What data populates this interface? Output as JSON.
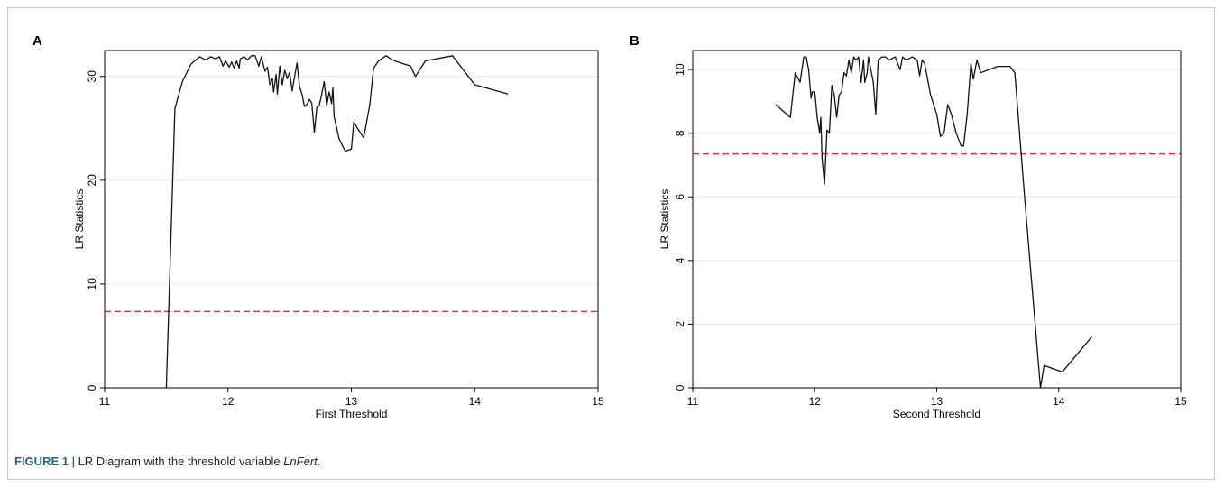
{
  "figure": {
    "label": "FIGURE 1",
    "separator": " | ",
    "caption_text": "LR Diagram with the threshold variable ",
    "caption_var": "LnFert",
    "caption_end": "."
  },
  "colors": {
    "line": "#111111",
    "critical": "#c8385a",
    "grid": "#e6e6e6",
    "figure_label": "#2b5f8a"
  },
  "chart_data": [
    {
      "panel": "A",
      "type": "line",
      "xlabel": "First Threshold",
      "ylabel": "LR Statistics",
      "xlim": [
        11,
        15
      ],
      "ylim": [
        0,
        32.5
      ],
      "xticks": [
        11,
        12,
        13,
        14,
        15
      ],
      "yticks": [
        0,
        10,
        20,
        30
      ],
      "grid": true,
      "critical_value": 7.35,
      "series": [
        {
          "x": [
            11.5,
            11.57,
            11.63,
            11.7,
            11.77,
            11.82,
            11.86,
            11.9,
            11.93,
            11.96,
            11.98,
            12.01,
            12.03,
            12.05,
            12.07,
            12.09,
            12.1,
            12.13,
            12.16,
            12.19,
            12.22,
            12.25,
            12.27,
            12.3,
            12.32,
            12.34,
            12.36,
            12.37,
            12.39,
            12.4,
            12.42,
            12.44,
            12.46,
            12.48,
            12.5,
            12.52,
            12.54,
            12.56,
            12.58,
            12.6,
            12.62,
            12.64,
            12.66,
            12.68,
            12.7,
            12.72,
            12.74,
            12.76,
            12.78,
            12.8,
            12.82,
            12.84,
            12.85,
            12.86,
            12.88,
            12.9,
            12.95,
            13.0,
            13.02,
            13.06,
            13.1,
            13.15,
            13.18,
            13.22,
            13.28,
            13.35,
            13.48,
            13.52,
            13.6,
            13.82,
            14.0,
            14.27
          ],
          "y": [
            0.0,
            26.9,
            29.5,
            31.2,
            31.9,
            31.6,
            31.9,
            31.7,
            31.9,
            31.0,
            31.5,
            30.9,
            31.4,
            30.8,
            31.5,
            30.8,
            31.7,
            31.9,
            31.6,
            32.0,
            32.0,
            31.0,
            31.9,
            30.5,
            30.9,
            29.2,
            29.8,
            28.5,
            30.2,
            28.3,
            31.0,
            29.2,
            30.6,
            29.8,
            30.4,
            28.6,
            30.0,
            31.3,
            29.0,
            28.3,
            27.1,
            27.3,
            27.8,
            27.4,
            24.6,
            27.0,
            27.2,
            28.3,
            29.5,
            27.2,
            28.5,
            27.4,
            28.9,
            26.1,
            25.1,
            24.0,
            22.8,
            23.0,
            25.6,
            24.8,
            24.1,
            27.3,
            30.8,
            31.5,
            32.0,
            31.5,
            31.0,
            30.0,
            31.5,
            32.0,
            29.2,
            28.3
          ]
        }
      ]
    },
    {
      "panel": "B",
      "type": "line",
      "xlabel": "Second Threshold",
      "ylabel": "LR Statistics",
      "xlim": [
        11,
        15
      ],
      "ylim": [
        0,
        10.6
      ],
      "xticks": [
        11,
        12,
        13,
        14,
        15
      ],
      "yticks": [
        0,
        2,
        4,
        6,
        8,
        10
      ],
      "grid": true,
      "critical_value": 7.35,
      "series": [
        {
          "x": [
            11.68,
            11.8,
            11.84,
            11.88,
            11.91,
            11.93,
            11.95,
            11.97,
            11.98,
            12.0,
            12.02,
            12.04,
            12.05,
            12.06,
            12.08,
            12.1,
            12.12,
            12.14,
            12.16,
            12.18,
            12.2,
            12.22,
            12.24,
            12.26,
            12.28,
            12.3,
            12.32,
            12.34,
            12.36,
            12.38,
            12.4,
            12.41,
            12.43,
            12.44,
            12.46,
            12.48,
            12.5,
            12.52,
            12.55,
            12.58,
            12.61,
            12.66,
            12.7,
            12.72,
            12.75,
            12.8,
            12.84,
            12.86,
            12.88,
            12.9,
            12.92,
            12.95,
            13.0,
            13.03,
            13.06,
            13.09,
            13.12,
            13.16,
            13.2,
            13.22,
            13.25,
            13.28,
            13.3,
            13.33,
            13.36,
            13.5,
            13.6,
            13.64,
            13.72,
            13.85,
            13.88,
            14.03,
            14.27
          ],
          "y": [
            8.9,
            8.5,
            9.9,
            9.6,
            10.4,
            10.4,
            10.0,
            9.1,
            9.3,
            9.3,
            8.5,
            8.0,
            8.5,
            7.2,
            6.4,
            8.1,
            8.0,
            9.5,
            9.2,
            8.5,
            9.2,
            9.3,
            9.9,
            9.8,
            10.3,
            9.9,
            10.4,
            10.3,
            10.4,
            9.6,
            10.3,
            9.6,
            9.9,
            10.4,
            10.0,
            9.6,
            8.6,
            10.3,
            10.4,
            10.4,
            10.3,
            10.4,
            10.0,
            10.4,
            10.3,
            10.4,
            10.3,
            9.8,
            10.3,
            10.2,
            9.8,
            9.2,
            8.6,
            7.9,
            8.0,
            8.9,
            8.6,
            8.0,
            7.6,
            7.6,
            8.6,
            10.2,
            9.7,
            10.3,
            9.9,
            10.1,
            10.1,
            9.9,
            6.0,
            0.0,
            0.7,
            0.5,
            1.6
          ]
        }
      ]
    }
  ]
}
